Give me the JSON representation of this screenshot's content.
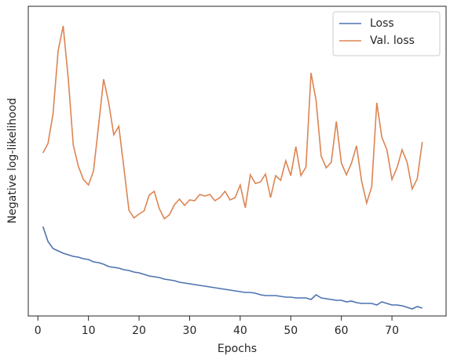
{
  "chart_data": {
    "type": "line",
    "xlabel": "Epochs",
    "ylabel": "Negative log-likelihood",
    "x": [
      1,
      2,
      3,
      4,
      5,
      6,
      7,
      8,
      9,
      10,
      11,
      12,
      13,
      14,
      15,
      16,
      17,
      18,
      19,
      20,
      21,
      22,
      23,
      24,
      25,
      26,
      27,
      28,
      29,
      30,
      31,
      32,
      33,
      34,
      35,
      36,
      37,
      38,
      39,
      40,
      41,
      42,
      43,
      44,
      45,
      46,
      47,
      48,
      49,
      50,
      51,
      52,
      53,
      54,
      55,
      56,
      57,
      58,
      59,
      60,
      61,
      62,
      63,
      64,
      65,
      66,
      67,
      68,
      69,
      70,
      71,
      72,
      73,
      74,
      75,
      76
    ],
    "series": [
      {
        "name": "Loss",
        "color": "#4c72b0",
        "values": [
          114,
          95,
          86,
          83,
          80,
          78,
          76,
          75,
          73,
          72,
          69,
          68,
          66,
          63,
          62,
          61,
          59,
          58,
          56,
          55,
          53,
          51,
          50,
          49,
          47,
          46,
          45,
          43,
          42,
          41,
          40,
          39,
          38,
          37,
          36,
          35,
          34,
          33,
          32,
          31,
          30,
          30,
          29,
          27,
          26,
          26,
          26,
          25,
          24,
          24,
          23,
          23,
          23,
          21,
          27,
          23,
          22,
          21,
          20,
          20,
          18,
          19,
          17,
          16,
          16,
          16,
          14,
          18,
          16,
          14,
          14,
          13,
          11,
          9,
          12,
          10
        ]
      },
      {
        "name": "Val. loss",
        "color": "#dd8452",
        "values": [
          208,
          220,
          258,
          338,
          370,
          303,
          218,
          191,
          174,
          167,
          185,
          243,
          302,
          272,
          231,
          242,
          189,
          135,
          125,
          130,
          134,
          154,
          159,
          137,
          124,
          129,
          142,
          149,
          141,
          148,
          147,
          155,
          153,
          155,
          147,
          151,
          159,
          148,
          151,
          167,
          138,
          180,
          169,
          171,
          181,
          151,
          179,
          173,
          198,
          179,
          216,
          179,
          190,
          310,
          275,
          204,
          189,
          196,
          248,
          195,
          180,
          195,
          217,
          172,
          144,
          165,
          272,
          228,
          212,
          174,
          189,
          212,
          196,
          162,
          175,
          222
        ]
      }
    ],
    "xlim": [
      -1.9,
      80.7
    ],
    "xticks": [
      0,
      10,
      20,
      30,
      40,
      50,
      60,
      70
    ],
    "ylim": [
      0,
      395
    ],
    "legend": "upper right"
  }
}
